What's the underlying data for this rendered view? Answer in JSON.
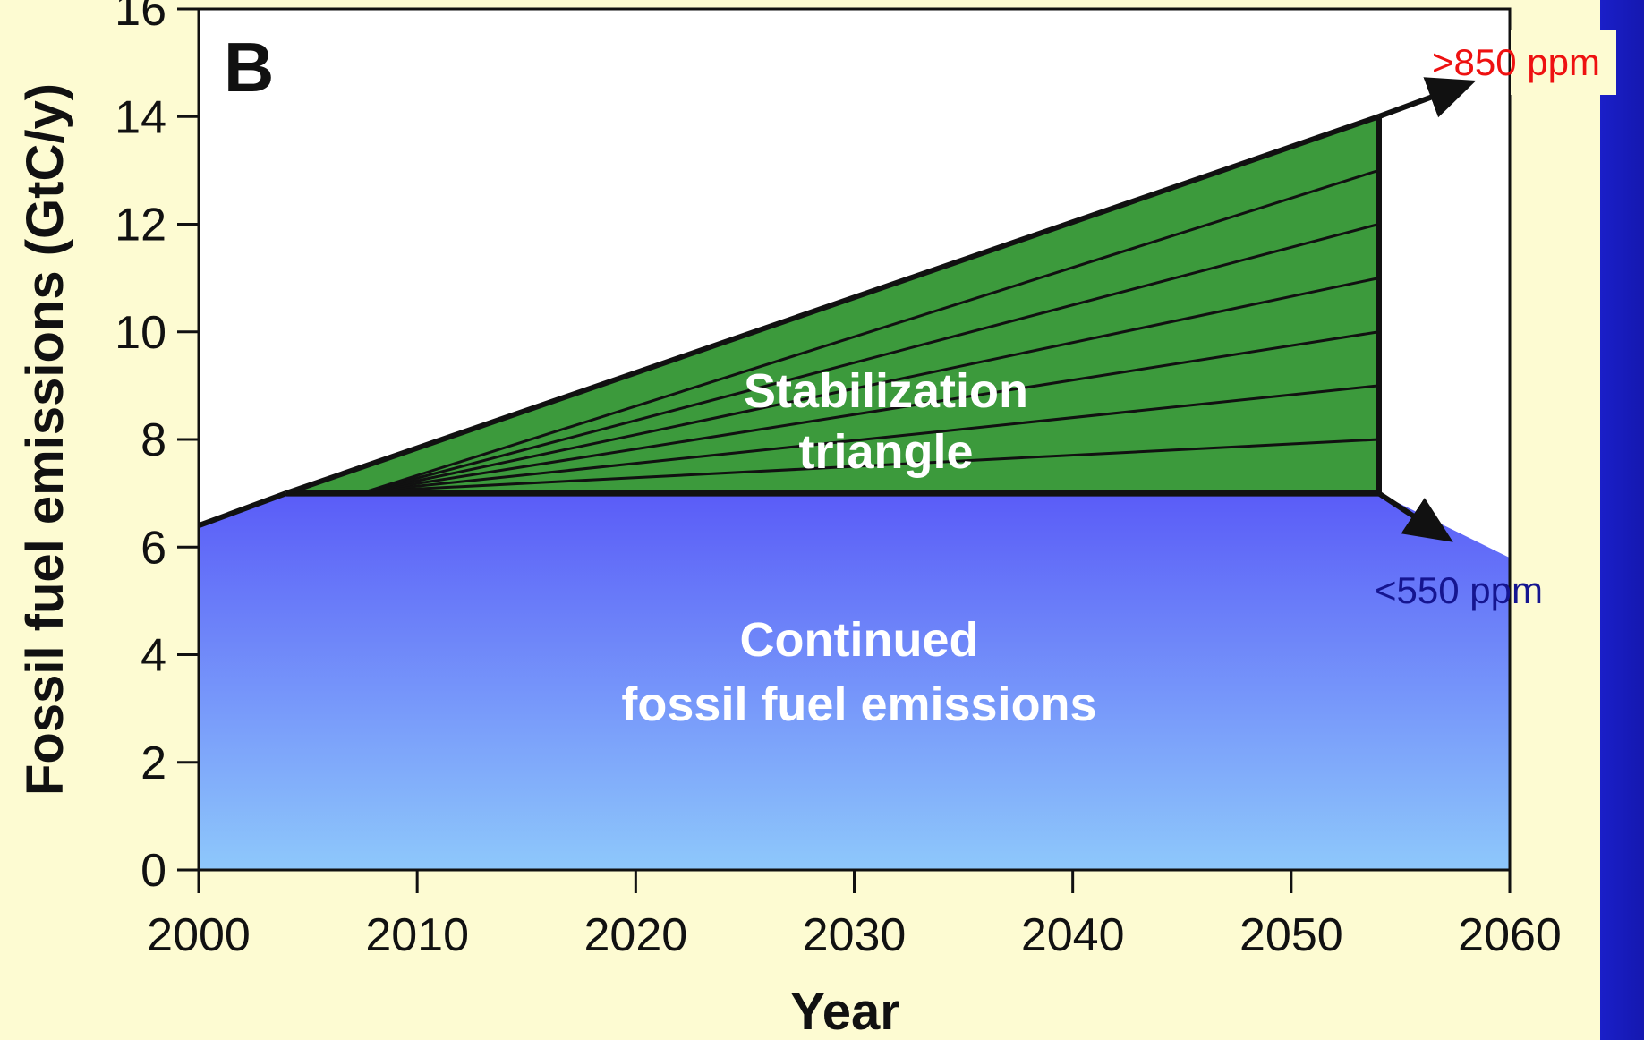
{
  "colors": {
    "background": "#fdfbd2",
    "slide_edge": "#1a1fc8",
    "stabilization_fill": "#3c9a3c",
    "continued_fill_top": "#5a5cf8",
    "continued_fill_bottom": "#8ec8fb",
    "annotation_high": "#ee1111",
    "annotation_low": "#151590"
  },
  "chart_data": {
    "type": "area",
    "panel_label": "B",
    "xlabel": "Year",
    "ylabel": "Fossil fuel emissions (GtC/y)",
    "xlim": [
      2000,
      2060
    ],
    "ylim": [
      0,
      16
    ],
    "x_ticks": [
      "2000",
      "2010",
      "2020",
      "2030",
      "2040",
      "2050",
      "2060"
    ],
    "y_ticks": [
      "0",
      "2",
      "4",
      "6",
      "8",
      "10",
      "12",
      "14",
      "16"
    ],
    "series": [
      {
        "name": "Continued fossil fuel emissions",
        "x": [
          2000,
          2004,
          2054,
          2060
        ],
        "y": [
          6.4,
          7,
          7,
          5.8
        ]
      },
      {
        "name": "Stabilization triangle",
        "x": [
          2004,
          2054
        ],
        "y_lower": [
          7,
          7
        ],
        "y_upper": [
          7,
          14
        ],
        "wedge_ends": [
          8,
          9,
          10,
          11,
          12,
          13
        ]
      }
    ],
    "annotations": [
      {
        "text": ">850 ppm",
        "from": [
          2054,
          14
        ],
        "to": [
          2058,
          14.6
        ],
        "color": "#ee1111"
      },
      {
        "text": "<550 ppm",
        "from": [
          2054,
          7
        ],
        "to": [
          2057,
          6.2
        ],
        "color": "#151590"
      }
    ],
    "region_labels": [
      {
        "lines": [
          "Stabilization",
          "triangle"
        ]
      },
      {
        "lines": [
          "Continued",
          "fossil fuel emissions"
        ]
      }
    ],
    "grid": false,
    "legend": "none"
  }
}
